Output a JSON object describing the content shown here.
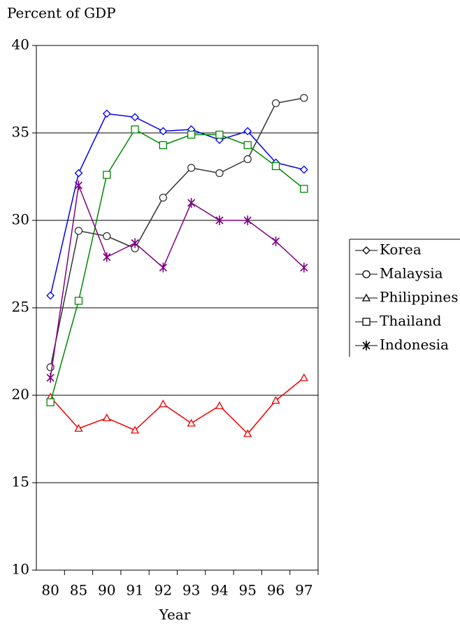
{
  "chart_data": {
    "type": "line",
    "title": "Percent of GDP",
    "x_label": "Year",
    "categories": [
      "80",
      "85",
      "90",
      "91",
      "92",
      "93",
      "94",
      "95",
      "96",
      "97"
    ],
    "ylim": [
      10,
      40
    ],
    "yticks": [
      10,
      15,
      20,
      25,
      30,
      35,
      40
    ],
    "grid": true,
    "legend": "right",
    "series": [
      {
        "name": "Korea",
        "color": "#0000ee",
        "marker": "diamond",
        "values": [
          25.7,
          32.7,
          36.1,
          35.9,
          35.1,
          35.2,
          34.6,
          35.1,
          33.3,
          32.9
        ]
      },
      {
        "name": "Malaysia",
        "color": "#333333",
        "marker": "circle",
        "values": [
          21.6,
          29.4,
          29.1,
          28.4,
          31.3,
          33.0,
          32.7,
          33.5,
          36.7,
          37.0
        ]
      },
      {
        "name": "Philippines",
        "color": "#ee0000",
        "marker": "triangle",
        "values": [
          19.9,
          18.1,
          18.7,
          18.0,
          19.5,
          18.4,
          19.4,
          17.8,
          19.7,
          21.0
        ]
      },
      {
        "name": "Thailand",
        "color": "#008800",
        "marker": "square",
        "values": [
          19.6,
          25.4,
          32.6,
          35.2,
          34.3,
          34.9,
          34.9,
          34.3,
          33.1,
          31.8
        ]
      },
      {
        "name": "Indonesia",
        "color": "#800080",
        "marker": "star",
        "values": [
          21.0,
          32.0,
          27.9,
          28.7,
          27.3,
          31.0,
          30.0,
          30.0,
          28.8,
          27.3
        ]
      }
    ]
  }
}
